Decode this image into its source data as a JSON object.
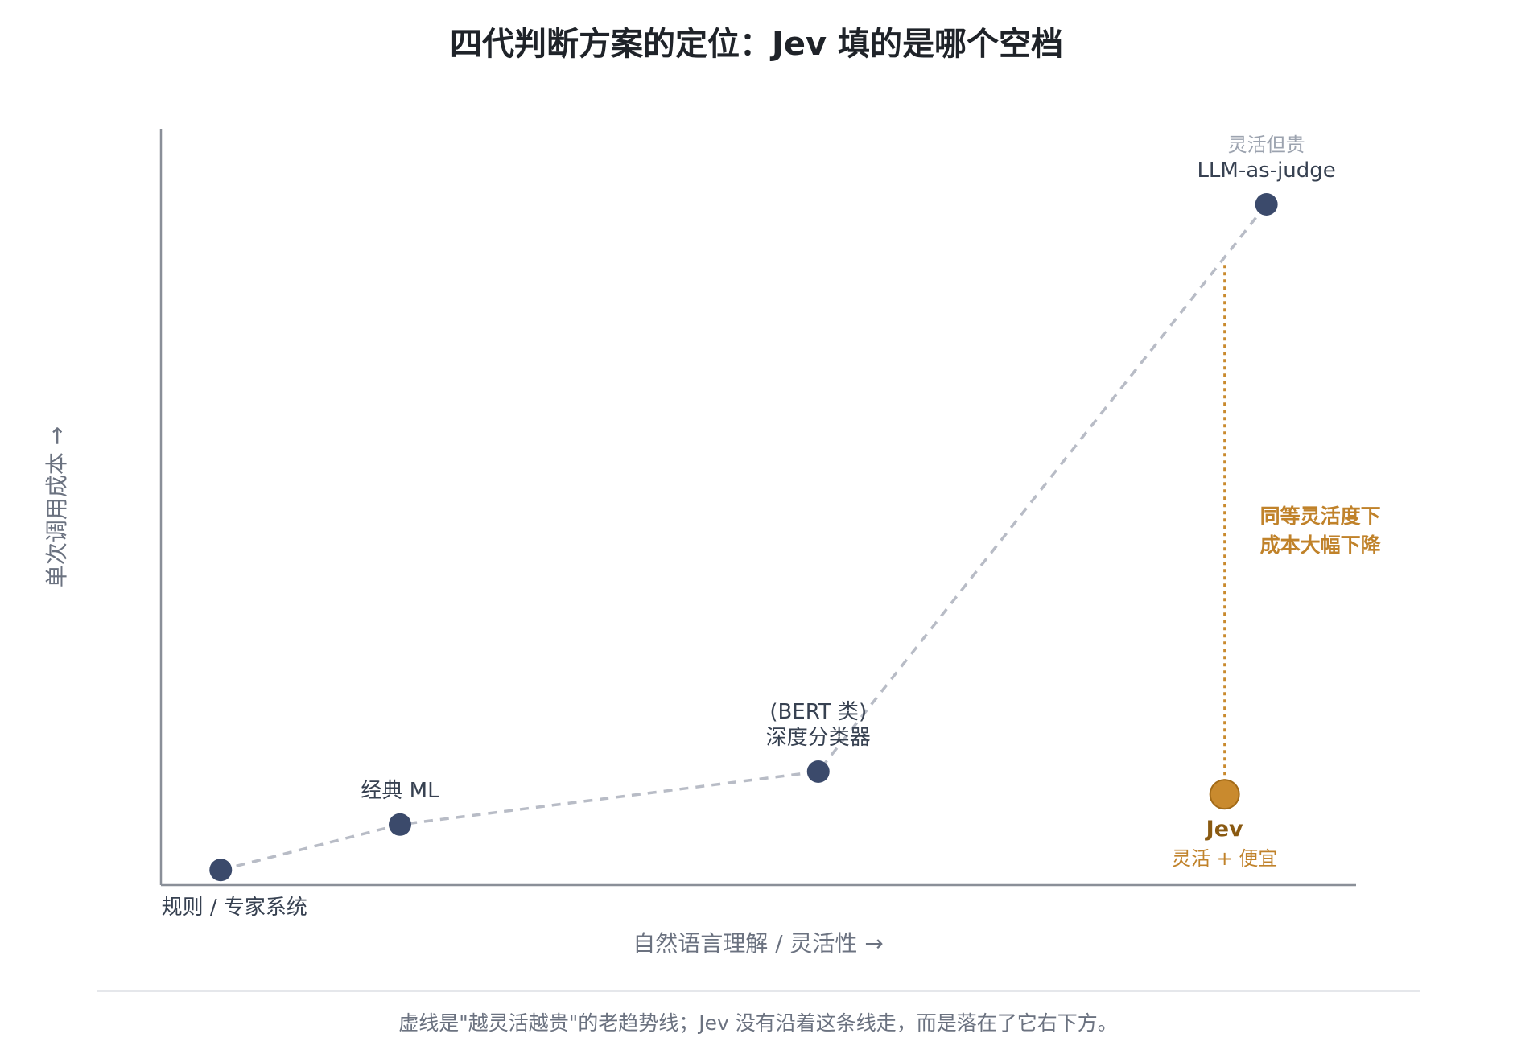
{
  "chart_data": {
    "type": "scatter",
    "title": "四代判断方案的定位：Jev 填的是哪个空档",
    "xlabel": "自然语言理解 / 灵活性 →",
    "ylabel": "单次调用成本 →",
    "xlim": [
      0,
      10
    ],
    "ylim": [
      0,
      10
    ],
    "grid": false,
    "legend": "none",
    "trend_series": {
      "name": "",
      "points": [
        {
          "x": 0.5,
          "y": 0.2
        },
        {
          "x": 2.0,
          "y": 0.8
        },
        {
          "x": 5.5,
          "y": 1.5
        },
        {
          "x": 9.25,
          "y": 9.0
        }
      ]
    },
    "points": [
      {
        "x": 0.5,
        "y": 0.2,
        "label": "规则 / 专家系统",
        "sublabel": "",
        "label_position": "below-left"
      },
      {
        "x": 2.0,
        "y": 0.8,
        "label": "经典 ML",
        "sublabel": "",
        "label_position": "above"
      },
      {
        "x": 5.5,
        "y": 1.5,
        "label": "深度分类器",
        "sublabel": "(BERT 类)",
        "label_position": "above"
      },
      {
        "x": 9.25,
        "y": 9.0,
        "label": "LLM-as-judge",
        "sublabel": "灵活但贵",
        "label_position": "above"
      }
    ],
    "highlight": {
      "x": 8.9,
      "y": 1.2,
      "label": "Jev",
      "sublabel": "灵活 + 便宜"
    },
    "gap_line": {
      "x": 8.9,
      "y_from": 8.2,
      "y_to": 1.2,
      "annotation": [
        "同等灵活度下",
        "成本大幅下降"
      ]
    },
    "colors": {
      "point": "#3b4a6b",
      "trend": "#b8bcc6",
      "highlight_fill": "#c98a2e",
      "highlight_stroke": "#a26a17",
      "axis": "#8a8f98"
    }
  },
  "caption": "虚线是\"越灵活越贵\"的老趋势线；Jev 没有沿着这条线走，而是落在了它右下方。"
}
